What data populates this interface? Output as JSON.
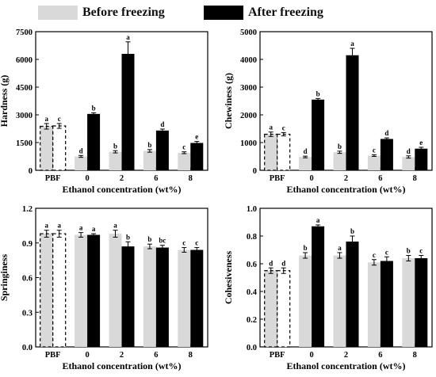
{
  "legend": {
    "before": "Before freezing",
    "after": "After freezing",
    "before_color": "#d9d9d9",
    "after_color": "#000000"
  },
  "chart_data": [
    {
      "type": "bar",
      "ylabel": "Hardness (g)",
      "xlabel": "Ethanol concentration (wt%)",
      "categories": [
        "PBF",
        "0",
        "2",
        "6",
        "8"
      ],
      "ylim": [
        0,
        7500
      ],
      "yticks": [
        0,
        1500,
        3000,
        4500,
        6000,
        7500
      ],
      "series": [
        {
          "name": "Before freezing",
          "values": [
            2380,
            750,
            1000,
            1050,
            950
          ],
          "errors": [
            150,
            50,
            60,
            70,
            50
          ],
          "labels": [
            "a",
            "d",
            "b",
            "b",
            "c"
          ]
        },
        {
          "name": "After freezing",
          "values": [
            2400,
            3050,
            6300,
            2150,
            1480
          ],
          "errors": [
            130,
            60,
            650,
            80,
            80
          ],
          "labels": [
            "c",
            "b",
            "a",
            "d",
            "e"
          ]
        }
      ]
    },
    {
      "type": "bar",
      "ylabel": "Chewiness (g)",
      "xlabel": "Ethanol concentration (wt%)",
      "categories": [
        "PBF",
        "0",
        "2",
        "6",
        "8"
      ],
      "ylim": [
        0,
        5000
      ],
      "yticks": [
        0,
        1000,
        2000,
        3000,
        4000,
        5000
      ],
      "series": [
        {
          "name": "Before freezing",
          "values": [
            1300,
            480,
            650,
            530,
            480
          ],
          "errors": [
            80,
            30,
            40,
            30,
            40
          ],
          "labels": [
            "a",
            "d",
            "b",
            "c",
            "d"
          ]
        },
        {
          "name": "After freezing",
          "values": [
            1300,
            2550,
            4150,
            1130,
            780
          ],
          "errors": [
            60,
            40,
            250,
            40,
            50
          ],
          "labels": [
            "c",
            "b",
            "a",
            "d",
            "e"
          ]
        }
      ]
    },
    {
      "type": "bar",
      "ylabel": "Springiness",
      "xlabel": "Ethanol concentration (wt%)",
      "categories": [
        "PBF",
        "0",
        "2",
        "6",
        "8"
      ],
      "ylim": [
        0,
        1.2
      ],
      "yticks": [
        0,
        0.3,
        0.6,
        0.9,
        1.2
      ],
      "series": [
        {
          "name": "Before freezing",
          "values": [
            0.98,
            0.97,
            0.98,
            0.87,
            0.84
          ],
          "errors": [
            0.03,
            0.02,
            0.03,
            0.02,
            0.02
          ],
          "labels": [
            "a",
            "a",
            "a",
            "b",
            "c"
          ]
        },
        {
          "name": "After freezing",
          "values": [
            0.98,
            0.97,
            0.87,
            0.86,
            0.84
          ],
          "errors": [
            0.03,
            0.01,
            0.04,
            0.02,
            0.02
          ],
          "labels": [
            "a",
            "a",
            "b",
            "bc",
            "c"
          ]
        }
      ]
    },
    {
      "type": "bar",
      "ylabel": "Cohesiveness",
      "xlabel": "Ethanol concentration (wt%)",
      "categories": [
        "PBF",
        "0",
        "2",
        "6",
        "8"
      ],
      "ylim": [
        0,
        1.0
      ],
      "yticks": [
        0,
        0.2,
        0.4,
        0.6,
        0.8,
        1.0
      ],
      "series": [
        {
          "name": "Before freezing",
          "values": [
            0.55,
            0.66,
            0.66,
            0.61,
            0.64
          ],
          "errors": [
            0.02,
            0.02,
            0.02,
            0.02,
            0.02
          ],
          "labels": [
            "d",
            "b",
            "a",
            "c",
            "b"
          ]
        },
        {
          "name": "After freezing",
          "values": [
            0.55,
            0.87,
            0.76,
            0.62,
            0.64
          ],
          "errors": [
            0.02,
            0.01,
            0.04,
            0.03,
            0.02
          ],
          "labels": [
            "d",
            "a",
            "b",
            "c",
            "c"
          ]
        }
      ]
    }
  ]
}
